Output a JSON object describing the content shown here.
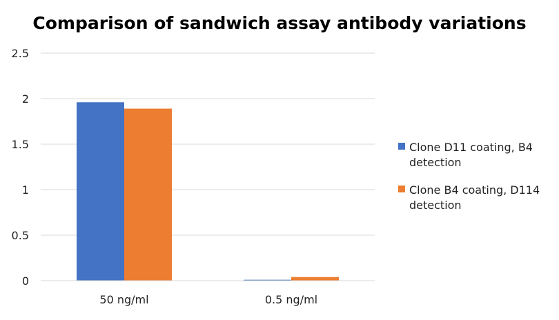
{
  "chart_data": {
    "type": "bar",
    "title": "Comparison of sandwich assay antibody variations",
    "xlabel": "",
    "ylabel": "",
    "categories": [
      "50 ng/ml",
      "0.5 ng/ml"
    ],
    "series": [
      {
        "name": "Clone D11 coating, B4 detection",
        "values": [
          1.96,
          0.01
        ],
        "color": "#4472C4"
      },
      {
        "name": "Clone B4 coating, D114 detection",
        "values": [
          1.89,
          0.04
        ],
        "color": "#ED7D31"
      }
    ],
    "ylim": [
      0,
      2.5
    ],
    "yticks": [
      "0",
      "0.5",
      "1",
      "1.5",
      "2",
      "2.5"
    ],
    "grid": true,
    "legend_position": "right"
  }
}
